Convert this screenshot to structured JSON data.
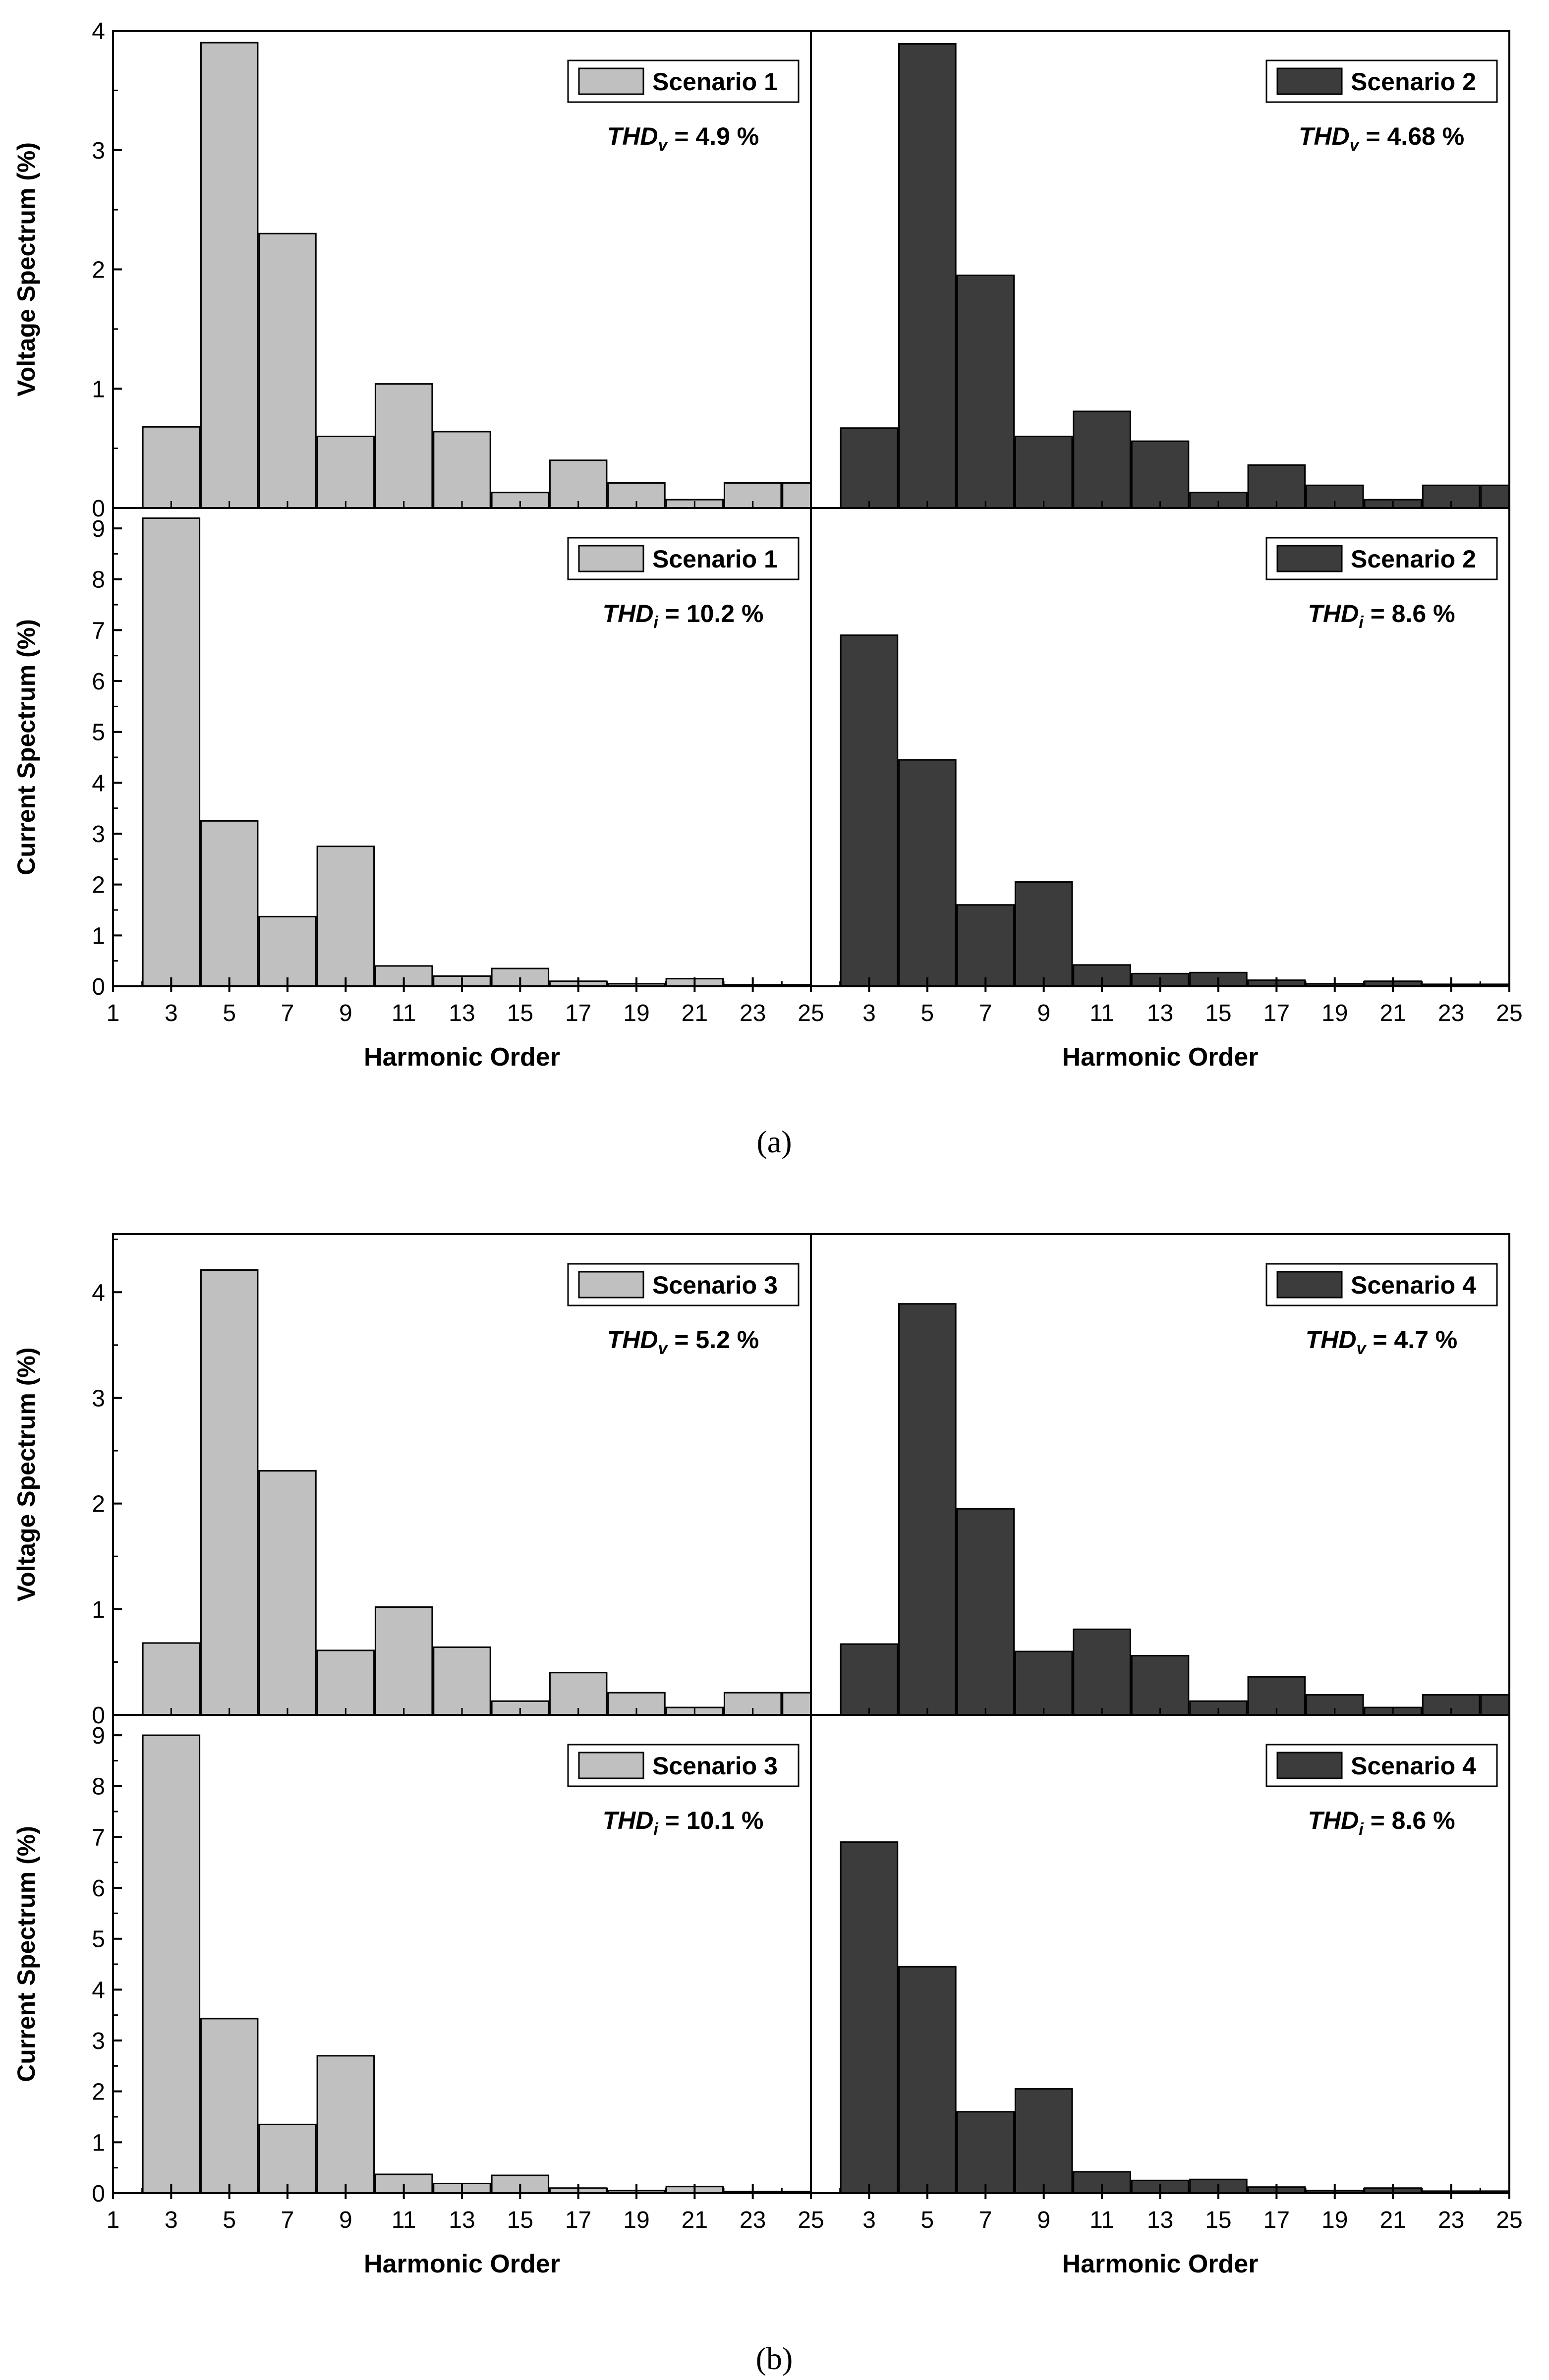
{
  "figure": {
    "caption_a": "(a)",
    "caption_b": "(b)",
    "x_label": "Harmonic Order",
    "y_label_voltage": "Voltage Spectrum (%)",
    "y_label_current": "Current Spectrum (%)",
    "x_ticks": [
      "1",
      "3",
      "5",
      "7",
      "9",
      "11",
      "13",
      "15",
      "17",
      "19",
      "21",
      "23",
      "25"
    ],
    "y_ticks_voltage_a": [
      "0",
      "1",
      "2",
      "3",
      "4"
    ],
    "y_ticks_voltage_b": [
      "0",
      "1",
      "2",
      "3",
      "4"
    ],
    "y_ticks_current": [
      "0",
      "1",
      "2",
      "3",
      "4",
      "5",
      "6",
      "7",
      "8",
      "9"
    ]
  },
  "colors": {
    "light_bar": "#c0c0c0",
    "dark_bar": "#3c3c3c",
    "axis": "#000000"
  },
  "chart_data": [
    {
      "type": "bar",
      "group": "a",
      "quantity": "voltage",
      "title": "",
      "xlabel": "",
      "ylabel": "Voltage Spectrum (%)",
      "series_name": "Scenario 1",
      "thd_symbol": "THD",
      "thd_sub": "v",
      "thd_value": " = 4.9 %",
      "x": [
        3,
        5,
        7,
        9,
        11,
        13,
        15,
        17,
        19,
        21,
        23,
        25
      ],
      "values": [
        0.68,
        3.9,
        2.3,
        0.6,
        1.04,
        0.64,
        0.13,
        0.4,
        0.21,
        0.07,
        0.21,
        0.21
      ],
      "xlim": [
        1,
        25
      ],
      "ylim": [
        0,
        4
      ],
      "legend": "top-right"
    },
    {
      "type": "bar",
      "group": "a",
      "quantity": "voltage",
      "title": "",
      "xlabel": "",
      "ylabel": "",
      "series_name": "Scenario 2",
      "thd_symbol": "THD",
      "thd_sub": "v",
      "thd_value": " = 4.68 %",
      "x": [
        3,
        5,
        7,
        9,
        11,
        13,
        15,
        17,
        19,
        21,
        23,
        25
      ],
      "values": [
        0.67,
        3.89,
        1.95,
        0.6,
        0.81,
        0.56,
        0.13,
        0.36,
        0.19,
        0.07,
        0.19,
        0.19
      ],
      "xlim": [
        1,
        25
      ],
      "ylim": [
        0,
        4
      ],
      "legend": "top-right"
    },
    {
      "type": "bar",
      "group": "a",
      "quantity": "current",
      "title": "",
      "xlabel": "Harmonic Order",
      "ylabel": "Current Spectrum (%)",
      "series_name": "Scenario 1",
      "thd_symbol": "THD",
      "thd_sub": "i",
      "thd_value": " = 10.2 %",
      "x": [
        3,
        5,
        7,
        9,
        11,
        13,
        15,
        17,
        19,
        21,
        23,
        25
      ],
      "values": [
        9.2,
        3.25,
        1.37,
        2.75,
        0.4,
        0.2,
        0.35,
        0.1,
        0.05,
        0.15,
        0.03,
        0.03
      ],
      "xlim": [
        1,
        25
      ],
      "ylim": [
        0,
        9.4
      ],
      "legend": "top-right"
    },
    {
      "type": "bar",
      "group": "a",
      "quantity": "current",
      "title": "",
      "xlabel": "Harmonic Order",
      "ylabel": "",
      "series_name": "Scenario 2",
      "thd_symbol": "THD",
      "thd_sub": "i",
      "thd_value": " = 8.6 %",
      "x": [
        3,
        5,
        7,
        9,
        11,
        13,
        15,
        17,
        19,
        21,
        23,
        25
      ],
      "values": [
        6.9,
        4.45,
        1.6,
        2.05,
        0.42,
        0.25,
        0.27,
        0.12,
        0.05,
        0.1,
        0.04,
        0.04
      ],
      "xlim": [
        1,
        25
      ],
      "ylim": [
        0,
        9.4
      ],
      "legend": "top-right"
    },
    {
      "type": "bar",
      "group": "b",
      "quantity": "voltage",
      "title": "",
      "xlabel": "",
      "ylabel": "Voltage Spectrum (%)",
      "series_name": "Scenario 3",
      "thd_symbol": "THD",
      "thd_sub": "v",
      "thd_value": " = 5.2 %",
      "x": [
        3,
        5,
        7,
        9,
        11,
        13,
        15,
        17,
        19,
        21,
        23,
        25
      ],
      "values": [
        0.68,
        4.21,
        2.31,
        0.61,
        1.02,
        0.64,
        0.13,
        0.4,
        0.21,
        0.07,
        0.21,
        0.21
      ],
      "xlim": [
        1,
        25
      ],
      "ylim": [
        0,
        4.55
      ],
      "legend": "top-right"
    },
    {
      "type": "bar",
      "group": "b",
      "quantity": "voltage",
      "title": "",
      "xlabel": "",
      "ylabel": "",
      "series_name": "Scenario 4",
      "thd_symbol": "THD",
      "thd_sub": "v",
      "thd_value": " = 4.7 %",
      "x": [
        3,
        5,
        7,
        9,
        11,
        13,
        15,
        17,
        19,
        21,
        23,
        25
      ],
      "values": [
        0.67,
        3.89,
        1.95,
        0.6,
        0.81,
        0.56,
        0.13,
        0.36,
        0.19,
        0.07,
        0.19,
        0.19
      ],
      "xlim": [
        1,
        25
      ],
      "ylim": [
        0,
        4.55
      ],
      "legend": "top-right"
    },
    {
      "type": "bar",
      "group": "b",
      "quantity": "current",
      "title": "",
      "xlabel": "Harmonic Order",
      "ylabel": "Current Spectrum (%)",
      "series_name": "Scenario 3",
      "thd_symbol": "THD",
      "thd_sub": "i",
      "thd_value": " = 10.1 %",
      "x": [
        3,
        5,
        7,
        9,
        11,
        13,
        15,
        17,
        19,
        21,
        23,
        25
      ],
      "values": [
        9.0,
        3.43,
        1.35,
        2.7,
        0.37,
        0.19,
        0.35,
        0.1,
        0.05,
        0.13,
        0.03,
        0.03
      ],
      "xlim": [
        1,
        25
      ],
      "ylim": [
        0,
        9.4
      ],
      "legend": "top-right"
    },
    {
      "type": "bar",
      "group": "b",
      "quantity": "current",
      "title": "",
      "xlabel": "Harmonic Order",
      "ylabel": "",
      "series_name": "Scenario 4",
      "thd_symbol": "THD",
      "thd_sub": "i",
      "thd_value": " = 8.6 %",
      "x": [
        3,
        5,
        7,
        9,
        11,
        13,
        15,
        17,
        19,
        21,
        23,
        25
      ],
      "values": [
        6.9,
        4.45,
        1.6,
        2.05,
        0.42,
        0.25,
        0.27,
        0.12,
        0.05,
        0.1,
        0.04,
        0.04
      ],
      "xlim": [
        1,
        25
      ],
      "ylim": [
        0,
        9.4
      ],
      "legend": "top-right"
    }
  ]
}
